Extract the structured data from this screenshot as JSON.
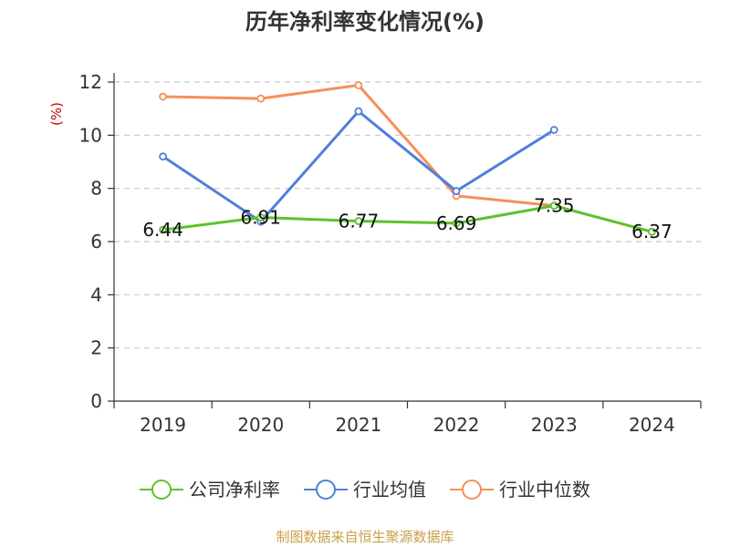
{
  "chart_data": {
    "type": "line",
    "title": "历年净利率变化情况(%)",
    "ylabel": "(%)",
    "categories": [
      "2019",
      "2020",
      "2021",
      "2022",
      "2023",
      "2024"
    ],
    "ylim": [
      0,
      12
    ],
    "yticks": [
      0,
      2,
      4,
      6,
      8,
      10,
      12
    ],
    "grid": true,
    "legend_position": "bottom",
    "series": [
      {
        "name": "公司净利率",
        "color": "#5cc22c",
        "values": [
          6.44,
          6.91,
          6.77,
          6.69,
          7.35,
          6.37
        ],
        "labels": [
          "6.44",
          "6.91",
          "6.77",
          "6.69",
          "7.35",
          "6.37"
        ]
      },
      {
        "name": "行业均值",
        "color": "#4f7fdb",
        "values": [
          9.2,
          6.75,
          10.9,
          7.9,
          10.2,
          null
        ]
      },
      {
        "name": "行业中位数",
        "color": "#f58f5c",
        "values": [
          11.45,
          11.38,
          11.88,
          7.72,
          7.35,
          null
        ]
      }
    ]
  },
  "footer": {
    "source": "制图数据来自恒生聚源数据库"
  }
}
